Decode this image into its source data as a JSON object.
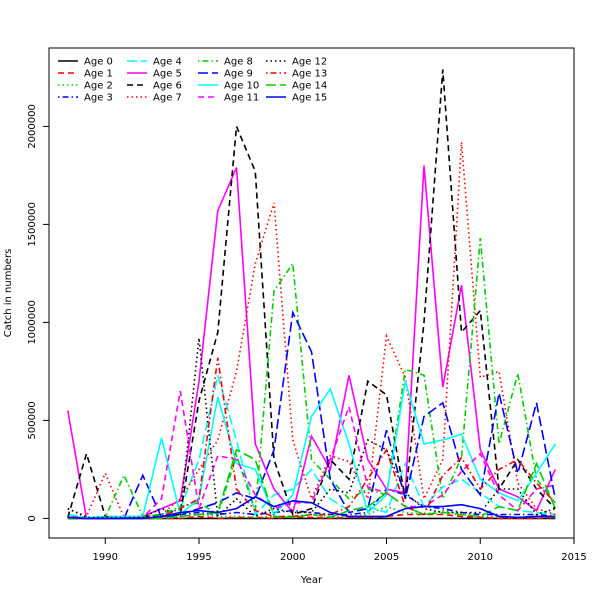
{
  "chart_data": {
    "type": "line",
    "title": "",
    "xlabel": "Year",
    "ylabel": "Catch in numbers",
    "xlim": [
      1987,
      2015
    ],
    "ylim": [
      -100000,
      2400000
    ],
    "x_ticks": [
      1990,
      1995,
      2000,
      2005,
      2010,
      2015
    ],
    "y_ticks": [
      0,
      500000,
      1000000,
      1500000,
      2000000
    ],
    "grid": false,
    "legend_position": "top-left",
    "x": [
      1988,
      1989,
      1990,
      1991,
      1992,
      1993,
      1994,
      1995,
      1996,
      1997,
      1998,
      1999,
      2000,
      2001,
      2002,
      2003,
      2004,
      2005,
      2006,
      2007,
      2008,
      2009,
      2010,
      2011,
      2012,
      2013,
      2014
    ],
    "series": [
      {
        "name": "Age 0",
        "color": "#000000",
        "dash": "solid",
        "values": [
          0,
          0,
          0,
          0,
          0,
          0,
          0,
          0,
          0,
          0,
          0,
          0,
          0,
          0,
          0,
          0,
          0,
          0,
          0,
          0,
          0,
          0,
          0,
          0,
          0,
          0,
          0
        ]
      },
      {
        "name": "Age 1",
        "color": "#ff0000",
        "dash": "dashed",
        "values": [
          5000,
          0,
          5000,
          0,
          0,
          0,
          0,
          10000,
          0,
          5000,
          5000,
          0,
          10000,
          5000,
          0,
          5000,
          5000,
          10000,
          20000,
          20000,
          20000,
          10000,
          5000,
          0,
          0,
          0,
          5000
        ]
      },
      {
        "name": "Age 2",
        "color": "#00cd00",
        "dash": "dotted",
        "values": [
          5000,
          5000,
          5000,
          5000,
          5000,
          5000,
          10000,
          20000,
          10000,
          10000,
          5000,
          10000,
          10000,
          20000,
          10000,
          10000,
          20000,
          60000,
          30000,
          20000,
          40000,
          20000,
          10000,
          10000,
          5000,
          10000,
          5000
        ]
      },
      {
        "name": "Age 3",
        "color": "#0000ff",
        "dash": "dotdash",
        "values": [
          10000,
          5000,
          0,
          5000,
          10000,
          20000,
          20000,
          30000,
          20000,
          30000,
          20000,
          30000,
          40000,
          30000,
          20000,
          20000,
          30000,
          150000,
          120000,
          60000,
          50000,
          30000,
          20000,
          20000,
          20000,
          20000,
          10000
        ]
      },
      {
        "name": "Age 4",
        "color": "#00ffff",
        "dash": "longdash",
        "values": [
          20000,
          5000,
          10000,
          10000,
          10000,
          20000,
          50000,
          300000,
          730000,
          400000,
          20000,
          120000,
          150000,
          250000,
          100000,
          40000,
          60000,
          30000,
          280000,
          60000,
          160000,
          200000,
          130000,
          60000,
          40000,
          30000,
          20000
        ]
      },
      {
        "name": "Age 5",
        "color": "#ff00ff",
        "dash": "solid",
        "values": [
          550000,
          0,
          0,
          0,
          10000,
          50000,
          90000,
          700000,
          1570000,
          1790000,
          380000,
          150000,
          30000,
          420000,
          250000,
          730000,
          300000,
          150000,
          130000,
          1800000,
          670000,
          1190000,
          350000,
          150000,
          110000,
          40000,
          250000
        ]
      },
      {
        "name": "Age 6",
        "color": "#000000",
        "dash": "dashed",
        "values": [
          5000,
          330000,
          10000,
          5000,
          10000,
          10000,
          20000,
          600000,
          950000,
          2000000,
          1770000,
          300000,
          20000,
          50000,
          300000,
          200000,
          700000,
          630000,
          100000,
          1000000,
          2290000,
          950000,
          1060000,
          150000,
          300000,
          150000,
          50000
        ]
      },
      {
        "name": "Age 7",
        "color": "#ff0000",
        "dash": "dotted",
        "values": [
          50000,
          10000,
          230000,
          5000,
          10000,
          20000,
          100000,
          250000,
          400000,
          750000,
          1300000,
          1610000,
          400000,
          100000,
          320000,
          290000,
          100000,
          930000,
          720000,
          100000,
          300000,
          1920000,
          720000,
          750000,
          180000,
          50000,
          20000
        ]
      },
      {
        "name": "Age 8",
        "color": "#00cd00",
        "dash": "dotdash",
        "values": [
          10000,
          0,
          5000,
          220000,
          10000,
          20000,
          60000,
          80000,
          20000,
          320000,
          40000,
          1160000,
          1300000,
          300000,
          200000,
          100000,
          150000,
          120000,
          760000,
          730000,
          100000,
          310000,
          1430000,
          380000,
          740000,
          200000,
          80000
        ]
      },
      {
        "name": "Age 9",
        "color": "#0000ff",
        "dash": "longdash",
        "values": [
          0,
          0,
          0,
          0,
          220000,
          5000,
          20000,
          50000,
          80000,
          130000,
          100000,
          350000,
          1050000,
          850000,
          200000,
          30000,
          50000,
          450000,
          100000,
          520000,
          590000,
          250000,
          120000,
          640000,
          230000,
          590000,
          100000
        ]
      },
      {
        "name": "Age 10",
        "color": "#00ffff",
        "dash": "solid",
        "values": [
          10000,
          5000,
          5000,
          10000,
          10000,
          410000,
          20000,
          100000,
          620000,
          280000,
          250000,
          20000,
          120000,
          520000,
          660000,
          380000,
          30000,
          120000,
          700000,
          380000,
          400000,
          430000,
          200000,
          130000,
          90000,
          230000,
          380000
        ]
      },
      {
        "name": "Age 11",
        "color": "#ff00ff",
        "dash": "dashed",
        "values": [
          5000,
          0,
          0,
          0,
          5000,
          100000,
          650000,
          50000,
          320000,
          300000,
          120000,
          50000,
          80000,
          80000,
          300000,
          570000,
          160000,
          130000,
          60000,
          60000,
          120000,
          240000,
          330000,
          120000,
          40000,
          150000,
          170000
        ]
      },
      {
        "name": "Age 12",
        "color": "#000000",
        "dash": "dotted",
        "values": [
          50000,
          5000,
          5000,
          5000,
          5000,
          50000,
          20000,
          920000,
          10000,
          100000,
          10000,
          50000,
          30000,
          30000,
          150000,
          130000,
          400000,
          350000,
          130000,
          50000,
          30000,
          30000,
          30000,
          150000,
          150000,
          20000,
          50000
        ]
      },
      {
        "name": "Age 13",
        "color": "#ff0000",
        "dash": "dotdash",
        "values": [
          10000,
          0,
          0,
          0,
          0,
          10000,
          50000,
          100000,
          820000,
          150000,
          40000,
          10000,
          10000,
          20000,
          20000,
          60000,
          200000,
          350000,
          60000,
          20000,
          220000,
          310000,
          150000,
          250000,
          300000,
          180000,
          80000
        ]
      },
      {
        "name": "Age 14",
        "color": "#00cd00",
        "dash": "longdash",
        "values": [
          0,
          0,
          0,
          0,
          0,
          0,
          10000,
          20000,
          30000,
          350000,
          300000,
          10000,
          5000,
          20000,
          5000,
          40000,
          60000,
          130000,
          60000,
          20000,
          30000,
          20000,
          10000,
          60000,
          40000,
          280000,
          50000
        ]
      },
      {
        "name": "Age 15",
        "color": "#0000ff",
        "dash": "solid",
        "values": [
          5000,
          0,
          0,
          0,
          0,
          10000,
          30000,
          40000,
          30000,
          50000,
          110000,
          60000,
          90000,
          80000,
          30000,
          10000,
          10000,
          10000,
          50000,
          60000,
          60000,
          70000,
          50000,
          10000,
          5000,
          10000,
          10000
        ]
      }
    ]
  }
}
